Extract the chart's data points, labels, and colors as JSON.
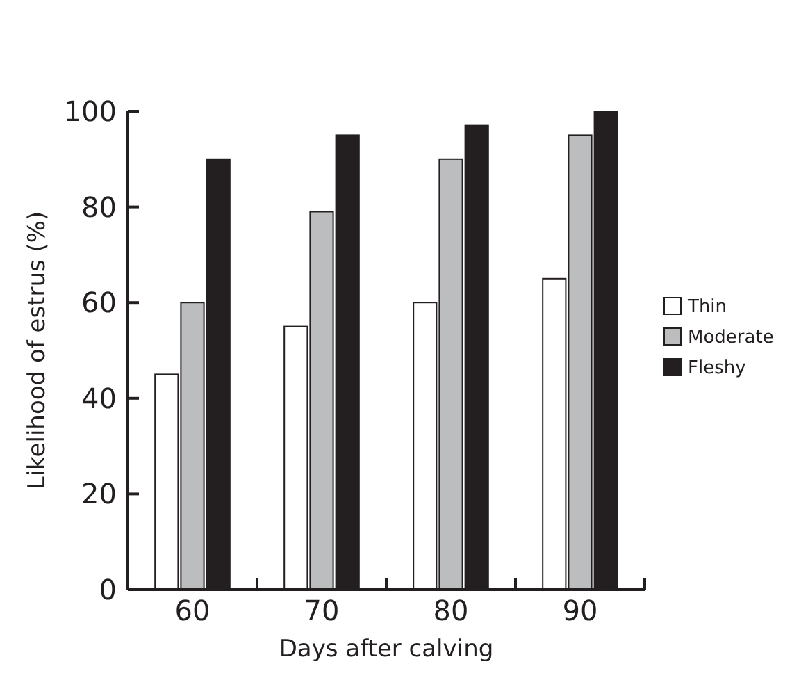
{
  "chart_data": {
    "type": "bar",
    "xlabel": "Days after calving",
    "ylabel": "Likelihood of estrus (%)",
    "categories": [
      "60",
      "70",
      "80",
      "90"
    ],
    "series": [
      {
        "name": "Thin",
        "color": "#ffffff",
        "values": [
          45,
          55,
          60,
          65
        ]
      },
      {
        "name": "Moderate",
        "color": "#bcbdbf",
        "values": [
          60,
          79,
          90,
          95
        ]
      },
      {
        "name": "Fleshy",
        "color": "#231f20",
        "values": [
          90,
          95,
          97,
          100
        ]
      }
    ],
    "ylim": [
      0,
      100
    ],
    "yticks": [
      0,
      20,
      40,
      60,
      80,
      100
    ],
    "grid": false,
    "legend": "right"
  }
}
